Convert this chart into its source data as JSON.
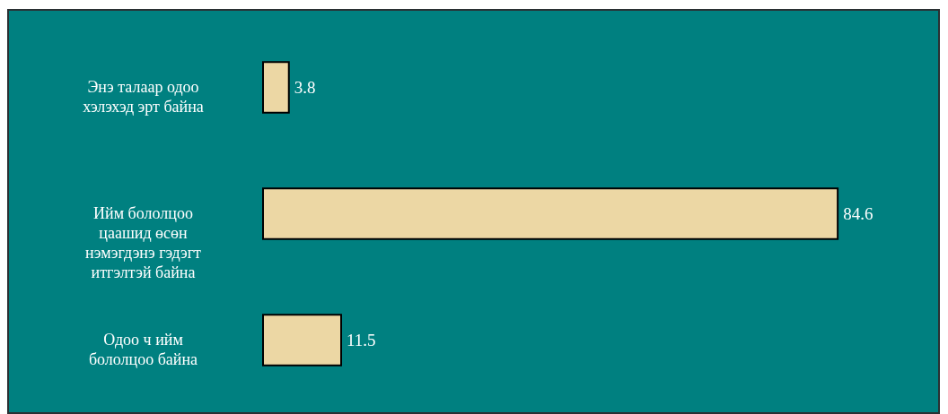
{
  "chart_data": {
    "type": "bar",
    "orientation": "horizontal",
    "categories": [
      "Энэ талаар одоо хэлэхэд эрт байна",
      "Ийм бололцоо цаашид өсөн нэмэгдэнэ гэдэгт итгэлтэй байна",
      "Одоо ч ийм бололцоо байна"
    ],
    "values": [
      3.8,
      84.6,
      11.5
    ],
    "color": "#ecd7a4",
    "data_labels": true
  }
}
